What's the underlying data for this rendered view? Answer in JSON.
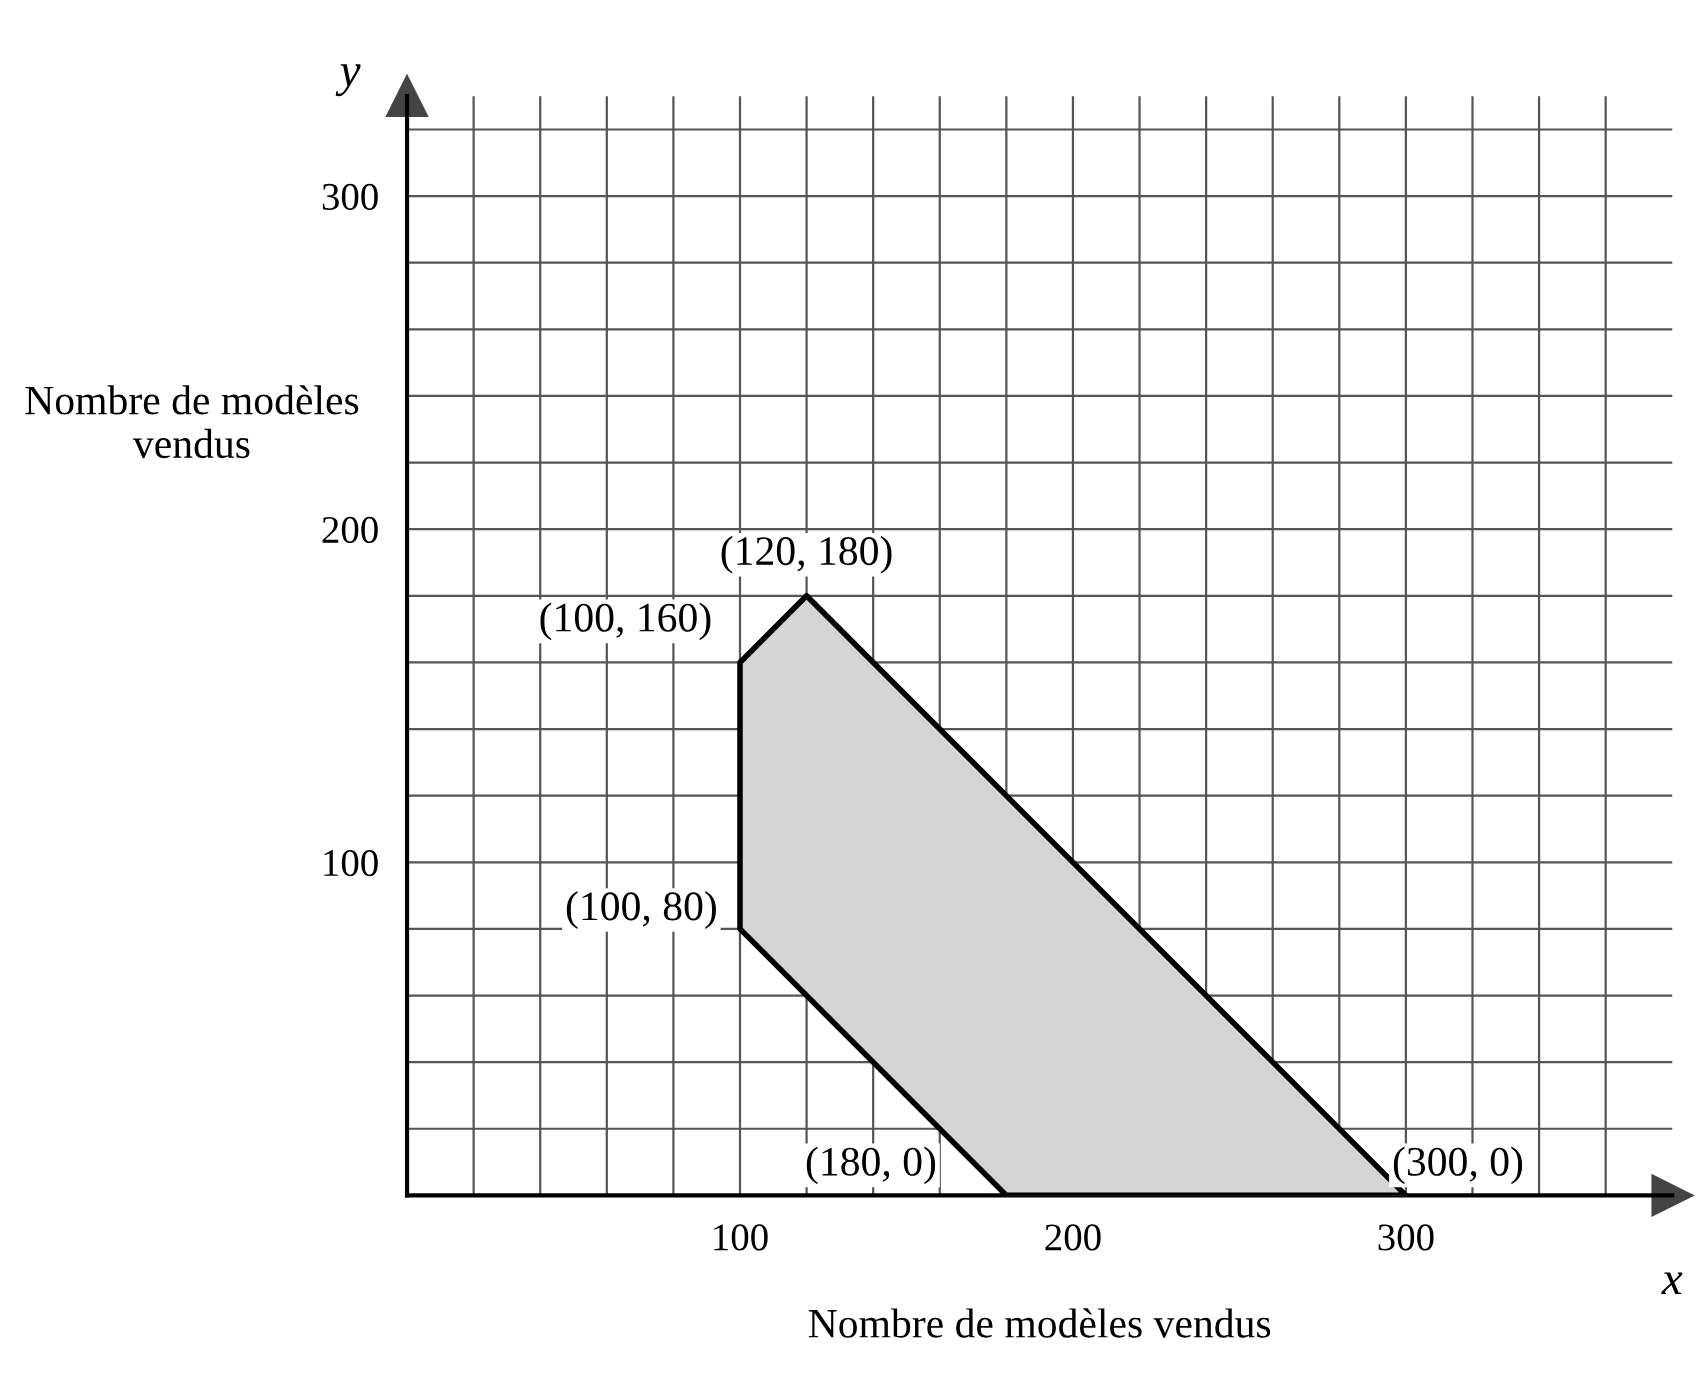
{
  "chart_data": {
    "type": "area",
    "xlabel": "Nombre de modèles vendus",
    "ylabel": "Nombre de modèles\nvendus",
    "series": [
      {
        "color": "#d4d4d4",
        "x": [
          100,
          100,
          120,
          300,
          180
        ],
        "values": [
          80,
          160,
          180,
          0,
          0
        ]
      }
    ],
    "annotations": [
      {
        "text": "(100, 80)",
        "x": 100,
        "y": 80
      },
      {
        "text": "(100, 160)",
        "x": 100,
        "y": 160
      },
      {
        "text": "(120, 180)",
        "x": 120,
        "y": 180
      },
      {
        "text": "(300, 0)",
        "x": 300,
        "y": 0
      },
      {
        "text": "(180, 0)",
        "x": 180,
        "y": 0
      },
      "x",
      "y"
    ],
    "xlim": [
      0,
      380
    ],
    "ylim": [
      0,
      330
    ],
    "xticks": [
      {
        "value": 20,
        "label": null
      },
      {
        "value": 40,
        "label": null
      },
      {
        "value": 60,
        "label": null
      },
      {
        "value": 80,
        "label": null
      },
      100,
      {
        "value": 120,
        "label": null
      },
      {
        "value": 140,
        "label": null
      },
      {
        "value": 160,
        "label": null
      },
      {
        "value": 180,
        "label": null
      },
      200,
      {
        "value": 220,
        "label": null
      },
      {
        "value": 240,
        "label": null
      },
      {
        "value": 260,
        "label": null
      },
      {
        "value": 280,
        "label": null
      },
      300,
      {
        "value": 320,
        "label": null
      },
      {
        "value": 340,
        "label": null
      },
      {
        "value": 360,
        "label": null
      }
    ],
    "yticks": [
      {
        "value": 20,
        "label": null
      },
      {
        "value": 40,
        "label": null
      },
      {
        "value": 60,
        "label": null
      },
      {
        "value": 80,
        "label": null
      },
      100,
      {
        "value": 120,
        "label": null
      },
      {
        "value": 140,
        "label": null
      },
      {
        "value": 160,
        "label": null
      },
      {
        "value": 180,
        "label": null
      },
      200,
      {
        "value": 220,
        "label": null
      },
      {
        "value": 240,
        "label": null
      },
      {
        "value": 260,
        "label": null
      },
      {
        "value": 280,
        "label": null
      },
      300,
      {
        "value": 320,
        "label": null
      }
    ],
    "grid": true
  }
}
